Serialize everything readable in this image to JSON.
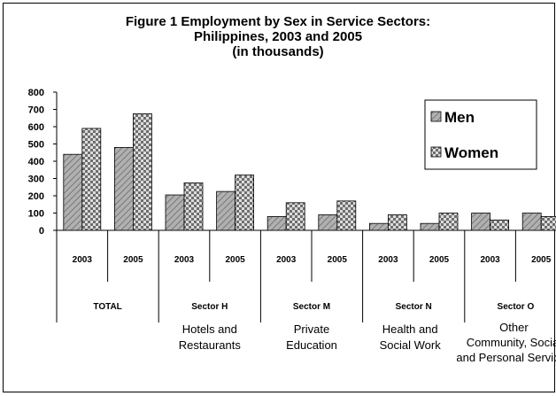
{
  "chart_data": {
    "type": "bar",
    "title": [
      "Figure 1 Employment by Sex in Service Sectors:",
      "Philippines, 2003 and 2005",
      "(in thousands)"
    ],
    "xlabel": "",
    "ylabel": "",
    "ylim": [
      0,
      800
    ],
    "yticks": [
      "0",
      "100",
      "200",
      "300",
      "400",
      "500",
      "600",
      "700",
      "800"
    ],
    "groups": [
      {
        "name": "TOTAL",
        "desc": [],
        "years": [
          "2003",
          "2005"
        ]
      },
      {
        "name": "Sector H",
        "desc": [
          "Hotels and",
          "Restaurants"
        ],
        "years": [
          "2003",
          "2005"
        ]
      },
      {
        "name": "Sector M",
        "desc": [
          "Private",
          "Education"
        ],
        "years": [
          "2003",
          "2005"
        ]
      },
      {
        "name": "Sector N",
        "desc": [
          "Health and",
          "Social Work"
        ],
        "years": [
          "2003",
          "2005"
        ]
      },
      {
        "name": "Sector O",
        "desc": [
          "Other",
          "Community, Social",
          "and Personal Services"
        ],
        "years": [
          "2003",
          "2005"
        ]
      }
    ],
    "series": [
      {
        "name": "Men",
        "values": [
          440,
          480,
          205,
          225,
          80,
          90,
          40,
          40,
          100,
          100
        ]
      },
      {
        "name": "Women",
        "values": [
          590,
          675,
          275,
          320,
          160,
          170,
          90,
          100,
          60,
          80
        ]
      }
    ],
    "legend_position": "top-right",
    "grid": false
  }
}
